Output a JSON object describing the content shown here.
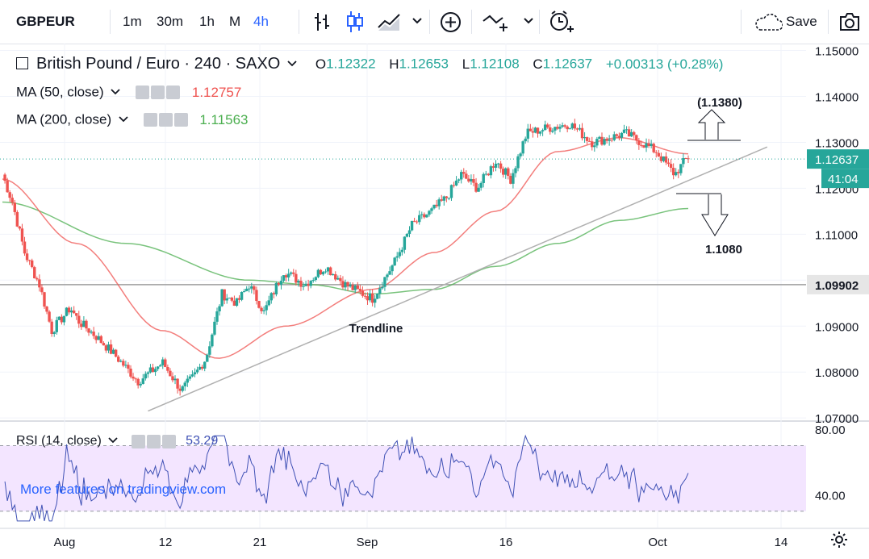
{
  "toolbar": {
    "symbol": "GBPEUR",
    "intervals": [
      "1m",
      "30m",
      "1h",
      "M",
      "4h"
    ],
    "active_interval": "4h",
    "save_label": "Save",
    "icons": [
      "bar-style-icon",
      "candle-style-icon",
      "area-style-icon",
      "chevron-down-icon",
      "plus-circle-icon",
      "indicator-icon",
      "alert-clock-icon",
      "cloud-icon",
      "camera-icon"
    ]
  },
  "legend": {
    "title": "British Pound / Euro · 240 · SAXO",
    "o_label": "O",
    "o_value": "1.12322",
    "h_label": "H",
    "h_value": "1.12653",
    "l_label": "L",
    "l_value": "1.12108",
    "c_label": "C",
    "c_value": "1.12637",
    "change": "+0.00313 (+0.28%)",
    "ma50_label": "MA (50, close)",
    "ma50_value": "1.12757",
    "ma200_label": "MA (200, close)",
    "ma200_value": "1.11563",
    "rsi_label": "RSI (14, close)",
    "rsi_value": "53.29"
  },
  "watermark": "More features on tradingview.com",
  "colors": {
    "up": "#26a69a",
    "down": "#ef5350",
    "ma50": "#ef5350",
    "ma200": "#4caf50",
    "rsi": "#3f51b5",
    "rsi_band": "#f3e5ff",
    "trendline": "#b0b0b0",
    "accent": "#2962ff"
  },
  "chart_data": [
    {
      "type": "candlestick",
      "title": "British Pound / Euro · 240 · SAXO",
      "y_ticks": [
        "1.15000",
        "1.14000",
        "1.13000",
        "1.12000",
        "1.11000",
        "1.10000",
        "1.09000",
        "1.08000",
        "1.07000"
      ],
      "x_ticks": [
        "Aug",
        "12",
        "21",
        "Sep",
        "16",
        "Oct",
        "14"
      ],
      "ylim": [
        1.0695,
        1.1515
      ],
      "price_label": "1.12637",
      "countdown_label": "41:04",
      "level_label": "1.09902",
      "level_value": 1.09902,
      "closes_anchor": [
        [
          0,
          1.123
        ],
        [
          8,
          1.117
        ],
        [
          18,
          1.106
        ],
        [
          30,
          1.099
        ],
        [
          40,
          1.089
        ],
        [
          55,
          1.094
        ],
        [
          62,
          1.091
        ],
        [
          75,
          1.088
        ],
        [
          90,
          1.084
        ],
        [
          110,
          1.078
        ],
        [
          130,
          1.082
        ],
        [
          145,
          1.076
        ],
        [
          155,
          1.079
        ],
        [
          165,
          1.083
        ],
        [
          178,
          1.097
        ],
        [
          190,
          1.095
        ],
        [
          200,
          1.099
        ],
        [
          212,
          1.093
        ],
        [
          228,
          1.102
        ],
        [
          245,
          1.099
        ],
        [
          262,
          1.103
        ],
        [
          278,
          1.099
        ],
        [
          300,
          1.096
        ],
        [
          318,
          1.104
        ],
        [
          332,
          1.112
        ],
        [
          348,
          1.115
        ],
        [
          360,
          1.118
        ],
        [
          372,
          1.123
        ],
        [
          385,
          1.12
        ],
        [
          400,
          1.126
        ],
        [
          412,
          1.122
        ],
        [
          425,
          1.132
        ],
        [
          440,
          1.133
        ],
        [
          460,
          1.134
        ],
        [
          478,
          1.13
        ],
        [
          493,
          1.131
        ],
        [
          505,
          1.132
        ],
        [
          518,
          1.13
        ],
        [
          530,
          1.128
        ],
        [
          545,
          1.123
        ],
        [
          556,
          1.127
        ]
      ],
      "ma50_points": [
        [
          0,
          1.122
        ],
        [
          60,
          1.108
        ],
        [
          130,
          1.089
        ],
        [
          175,
          1.083
        ],
        [
          230,
          1.09
        ],
        [
          300,
          1.098
        ],
        [
          350,
          1.106
        ],
        [
          400,
          1.115
        ],
        [
          450,
          1.128
        ],
        [
          500,
          1.131
        ],
        [
          556,
          1.1275
        ]
      ],
      "ma200_points": [
        [
          0,
          1.117
        ],
        [
          100,
          1.108
        ],
        [
          200,
          1.1
        ],
        [
          250,
          1.099
        ],
        [
          300,
          1.097
        ],
        [
          350,
          1.098
        ],
        [
          400,
          1.103
        ],
        [
          450,
          1.108
        ],
        [
          500,
          1.113
        ],
        [
          556,
          1.1156
        ]
      ],
      "trendline": [
        [
          118,
          1.0715
        ],
        [
          620,
          1.129
        ]
      ],
      "annotations": [
        {
          "text": "(1.1380)",
          "arrow": "up"
        },
        {
          "text": "1.1080",
          "arrow": "down"
        },
        {
          "text": "Trendline",
          "arrow": "none"
        }
      ]
    },
    {
      "type": "line",
      "title": "RSI (14, close)",
      "y_ticks": [
        "80.00",
        "40.00"
      ],
      "ylim": [
        20,
        85
      ],
      "band": [
        30,
        70
      ],
      "last_value": 53.29
    }
  ]
}
